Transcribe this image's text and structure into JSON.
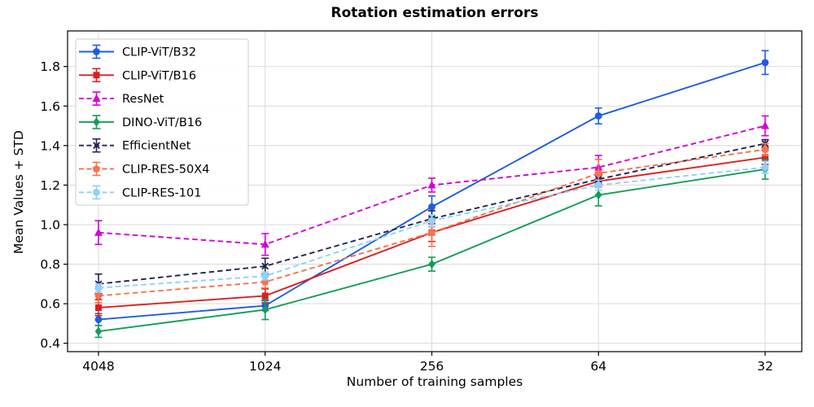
{
  "figure": {
    "title": "Rotation estimation errors",
    "xlabel": "Number of training samples",
    "ylabel": "Mean Values + STD"
  },
  "chart_data": {
    "type": "line",
    "title": "Rotation estimation errors",
    "xlabel": "Number of training samples",
    "ylabel": "Mean Values + STD",
    "categories": [
      "4048",
      "1024",
      "256",
      "64",
      "32"
    ],
    "y_ticks": [
      0.4,
      0.6,
      0.8,
      1.0,
      1.2,
      1.4,
      1.6,
      1.8
    ],
    "ylim": [
      0.36,
      1.98
    ],
    "grid": true,
    "grid_color": "#d9d9d9",
    "legend_position": "upper-left",
    "error_bars": true,
    "series": [
      {
        "name": "CLIP-ViT/B32",
        "color": "#1f5de0",
        "linestyle": "solid",
        "marker": "circle",
        "values": [
          0.52,
          0.59,
          1.09,
          1.55,
          1.82
        ],
        "errors": [
          0.03,
          0.025,
          0.055,
          0.04,
          0.06
        ]
      },
      {
        "name": "CLIP-ViT/B16",
        "color": "#dd1f1f",
        "linestyle": "solid",
        "marker": "square",
        "values": [
          0.58,
          0.64,
          0.96,
          1.22,
          1.34
        ],
        "errors": [
          0.04,
          0.035,
          0.045,
          0.03,
          0.035
        ]
      },
      {
        "name": "ResNet",
        "color": "#d400d4",
        "linestyle": "dashed",
        "marker": "triangle",
        "values": [
          0.96,
          0.9,
          1.2,
          1.29,
          1.5
        ],
        "errors": [
          0.06,
          0.055,
          0.035,
          0.06,
          0.05
        ]
      },
      {
        "name": "DINO-ViT/B16",
        "color": "#129d56",
        "linestyle": "solid",
        "marker": "diamond",
        "values": [
          0.46,
          0.57,
          0.8,
          1.15,
          1.28
        ],
        "errors": [
          0.03,
          0.05,
          0.035,
          0.055,
          0.05
        ]
      },
      {
        "name": "EfficientNet",
        "color": "#23234f",
        "linestyle": "dashed",
        "marker": "x",
        "values": [
          0.7,
          0.79,
          1.03,
          1.23,
          1.41
        ],
        "errors": [
          0.05,
          0.04,
          0.04,
          0.025,
          0.02
        ]
      },
      {
        "name": "CLIP-RES-50X4",
        "color": "#f8724d",
        "linestyle": "dashed",
        "marker": "pentagon",
        "values": [
          0.64,
          0.71,
          0.96,
          1.26,
          1.38
        ],
        "errors": [
          0.035,
          0.03,
          0.07,
          0.07,
          0.03
        ]
      },
      {
        "name": "CLIP-RES-101",
        "color": "#8ed1fa",
        "linestyle": "dashed",
        "marker": "circle",
        "values": [
          0.68,
          0.74,
          1.02,
          1.2,
          1.29
        ],
        "errors": [
          0.02,
          0.02,
          0.03,
          0.025,
          0.03
        ]
      }
    ]
  }
}
